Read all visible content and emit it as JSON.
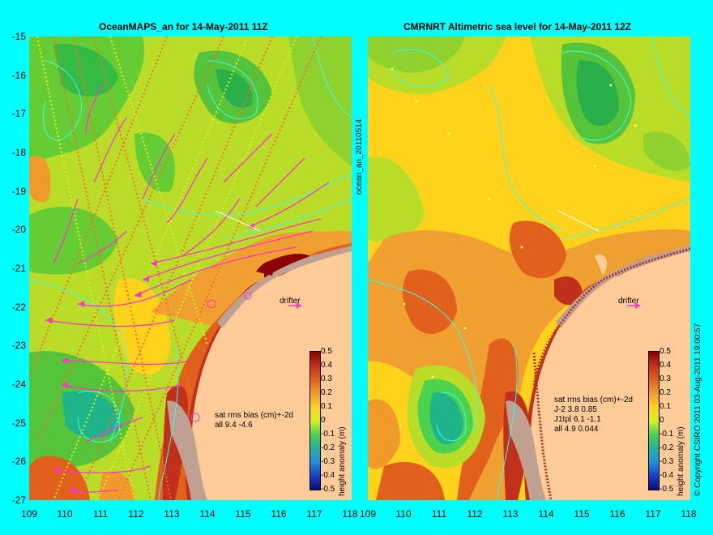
{
  "left_panel": {
    "title": "OceanMAPS_an for 14-May-2011 11Z",
    "stats_line1": "sat rms bias (cm)+-2d",
    "stats_line2": "all 9.4 -4.6"
  },
  "right_panel": {
    "title": "CMRNRT Altimetric sea level  for 14-May-2011 12Z",
    "stats_line1": "sat rms bias (cm)+-2d",
    "stats_line2": "J-2   3.8 0.85",
    "stats_line3": "J1tpl 6.1 -1.1",
    "stats_line4": "all 4.9 0.044"
  },
  "y_ticks": [
    "-15",
    "-16",
    "-17",
    "-18",
    "-19",
    "-20",
    "-21",
    "-22",
    "-23",
    "-24",
    "-25",
    "-26",
    "-27"
  ],
  "x_ticks_left": [
    "109",
    "110",
    "111",
    "112",
    "113",
    "114",
    "115",
    "116",
    "117",
    "118"
  ],
  "x_ticks_right": [
    "109",
    "110",
    "111",
    "112",
    "113",
    "114",
    "115",
    "116",
    "117",
    "118"
  ],
  "drifter_label": "drifter",
  "product_id": "ocean_an_20110514",
  "copyright": "© Copyright CSIRO 2011  03-Aug-2011 19:00:57",
  "colorbar": {
    "ticks": [
      "0.5",
      "0.4",
      "0.3",
      "0.2",
      "0.1",
      "0",
      "-0.1",
      "-0.2",
      "-0.3",
      "-0.4",
      "-0.5"
    ],
    "label": "height anomaly (m)",
    "colors": [
      "#8b0000",
      "#c0301a",
      "#e0601c",
      "#f09a2c",
      "#ffd21c",
      "#d8f21c",
      "#4cd24c",
      "#20b4a0",
      "#2090e0",
      "#1a40c8",
      "#0a0a80"
    ]
  },
  "colors": {
    "background": "#00ffff",
    "land": "#ffcc99",
    "coast": "#c0a090",
    "velocity_arrows": "#ff33cc"
  }
}
